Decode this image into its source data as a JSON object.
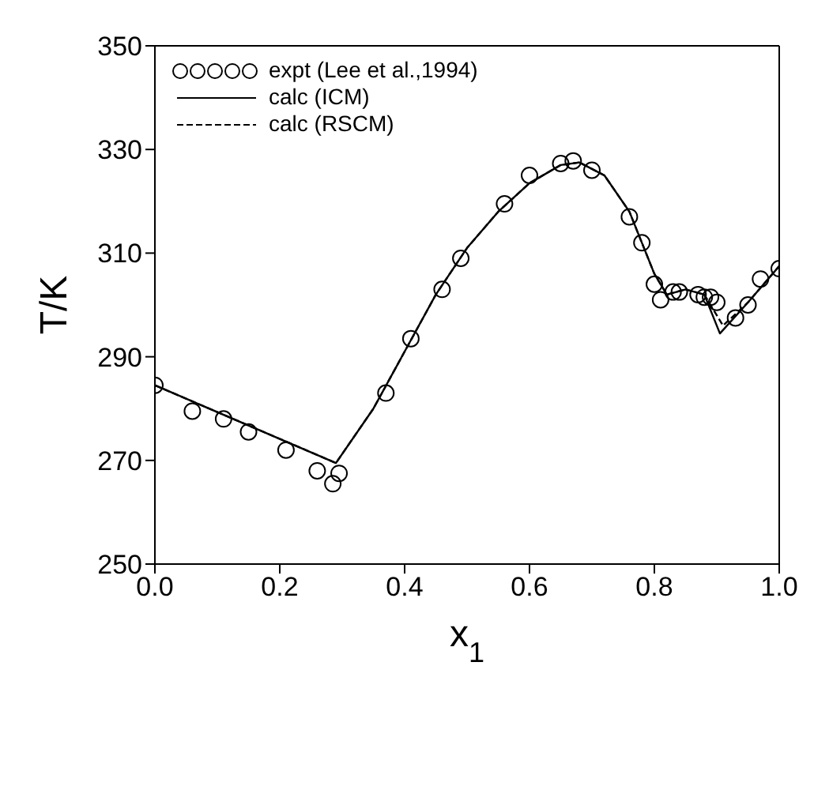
{
  "chart_data": {
    "type": "line",
    "xlabel": "x$_{1}$",
    "ylabel": "T/K",
    "xlim": [
      0,
      1
    ],
    "ylim": [
      250,
      350
    ],
    "xticks": [
      {
        "value": 0,
        "label": "0.0"
      },
      0.2,
      0.4,
      0.6,
      0.8,
      {
        "value": 1,
        "label": "1.0"
      }
    ],
    "yticks": [
      250,
      270,
      290,
      310,
      330,
      350
    ],
    "grid": false,
    "legend": "top left",
    "series": [
      {
        "name": "expt (Lee et al.,1994)",
        "type": "scatter",
        "marker": "circle",
        "color": "#000000",
        "x": [
          0.0,
          0.06,
          0.11,
          0.15,
          0.21,
          0.26,
          0.285,
          0.295,
          0.37,
          0.41,
          0.46,
          0.49,
          0.56,
          0.6,
          0.65,
          0.67,
          0.7,
          0.76,
          0.78,
          0.8,
          0.81,
          0.83,
          0.84,
          0.87,
          0.88,
          0.89,
          0.9,
          0.93,
          0.95,
          0.97,
          1.0
        ],
        "values": [
          284.5,
          279.5,
          278,
          275.5,
          272,
          268,
          265.5,
          267.5,
          283,
          293.5,
          303,
          309,
          319.5,
          325,
          327.3,
          327.8,
          326,
          317,
          312,
          304,
          301,
          302.5,
          302.5,
          302,
          301.5,
          301.5,
          300.5,
          297.5,
          300,
          305,
          307
        ]
      },
      {
        "name": "calc (ICM)",
        "line_style": "solid",
        "marker": "none",
        "color": "#000000",
        "x": [
          0,
          0.29,
          0.35,
          0.4,
          0.45,
          0.5,
          0.55,
          0.6,
          0.65,
          0.68,
          0.72,
          0.76,
          0.8,
          0.82,
          0.85,
          0.88,
          0.905,
          0.95,
          1.0
        ],
        "values": [
          284.5,
          269.5,
          280,
          291,
          302,
          311,
          318,
          323.5,
          327,
          327.5,
          325,
          318,
          306,
          302,
          303,
          302,
          294.5,
          300.5,
          307.5
        ]
      },
      {
        "name": "calc (RSCM)",
        "line_style": "dashed",
        "marker": "none",
        "color": "#000000",
        "x": [
          0,
          0.29,
          0.35,
          0.4,
          0.45,
          0.5,
          0.55,
          0.6,
          0.65,
          0.68,
          0.72,
          0.76,
          0.8,
          0.82,
          0.85,
          0.88,
          0.91,
          0.95,
          1.0
        ],
        "values": [
          284.5,
          269.5,
          280,
          291,
          302,
          311,
          318,
          323.5,
          327,
          327.5,
          325,
          318,
          306,
          302,
          303,
          302,
          296,
          300.5,
          307.5
        ]
      }
    ]
  }
}
